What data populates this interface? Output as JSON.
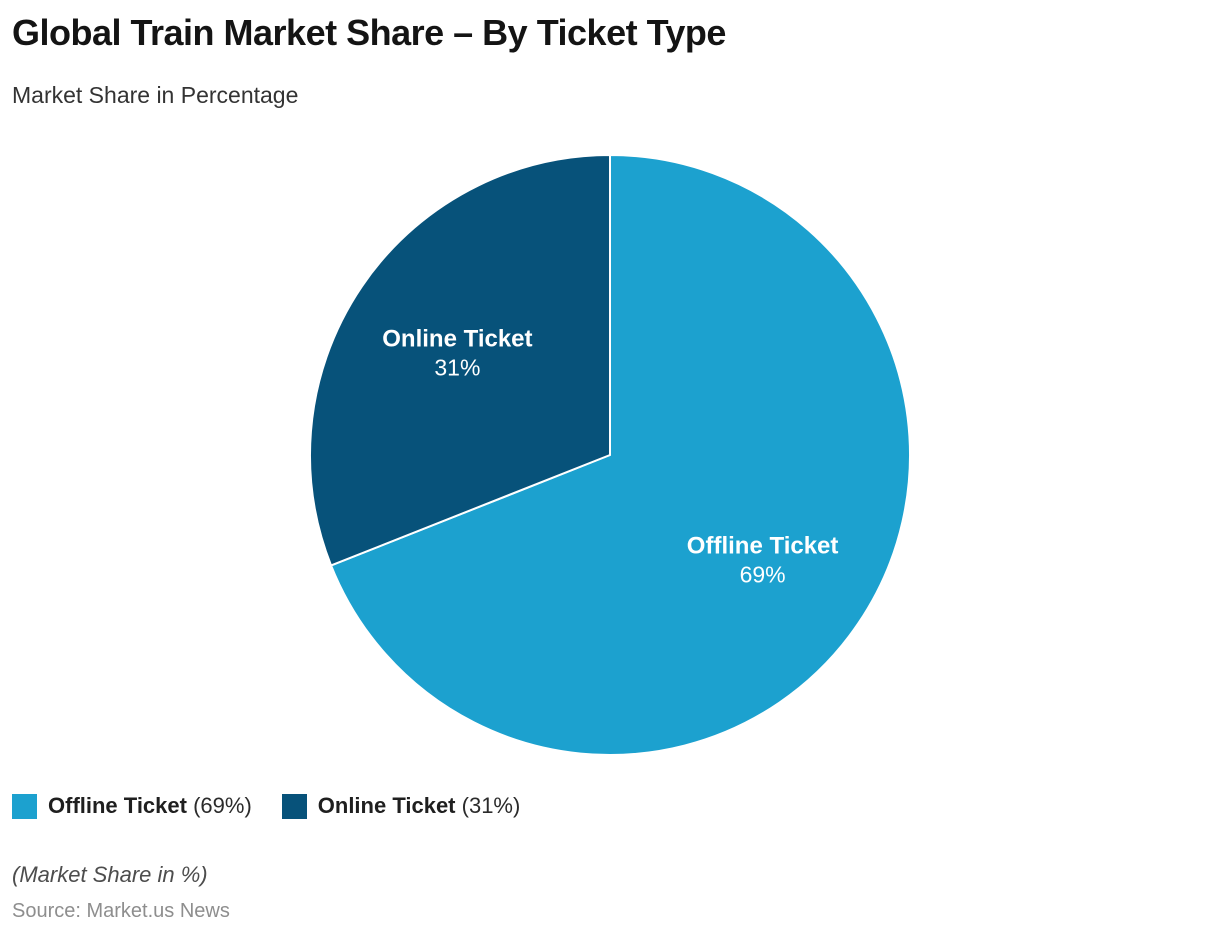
{
  "header": {
    "title": "Global Train Market Share – By Ticket Type",
    "subtitle": "Market Share in Percentage"
  },
  "chart_data": {
    "type": "pie",
    "title": "Global Train Market Share – By Ticket Type",
    "subtitle": "Market Share in Percentage",
    "unit": "%",
    "start_angle_deg": 0,
    "direction": "clockwise",
    "legend_position": "bottom-left",
    "slices": [
      {
        "label": "Offline Ticket",
        "value": 69,
        "color": "#1CA1CF",
        "text_color": "#ffffff"
      },
      {
        "label": "Online Ticket",
        "value": 31,
        "color": "#07527A",
        "text_color": "#ffffff"
      }
    ]
  },
  "legend": {
    "items": [
      {
        "label": "Offline Ticket",
        "value_text": "(69%)",
        "color": "#1CA1CF"
      },
      {
        "label": "Online Ticket",
        "value_text": "(31%)",
        "color": "#07527A"
      }
    ]
  },
  "footer": {
    "note": "(Market Share in %)",
    "source": "Source: Market.us News"
  }
}
